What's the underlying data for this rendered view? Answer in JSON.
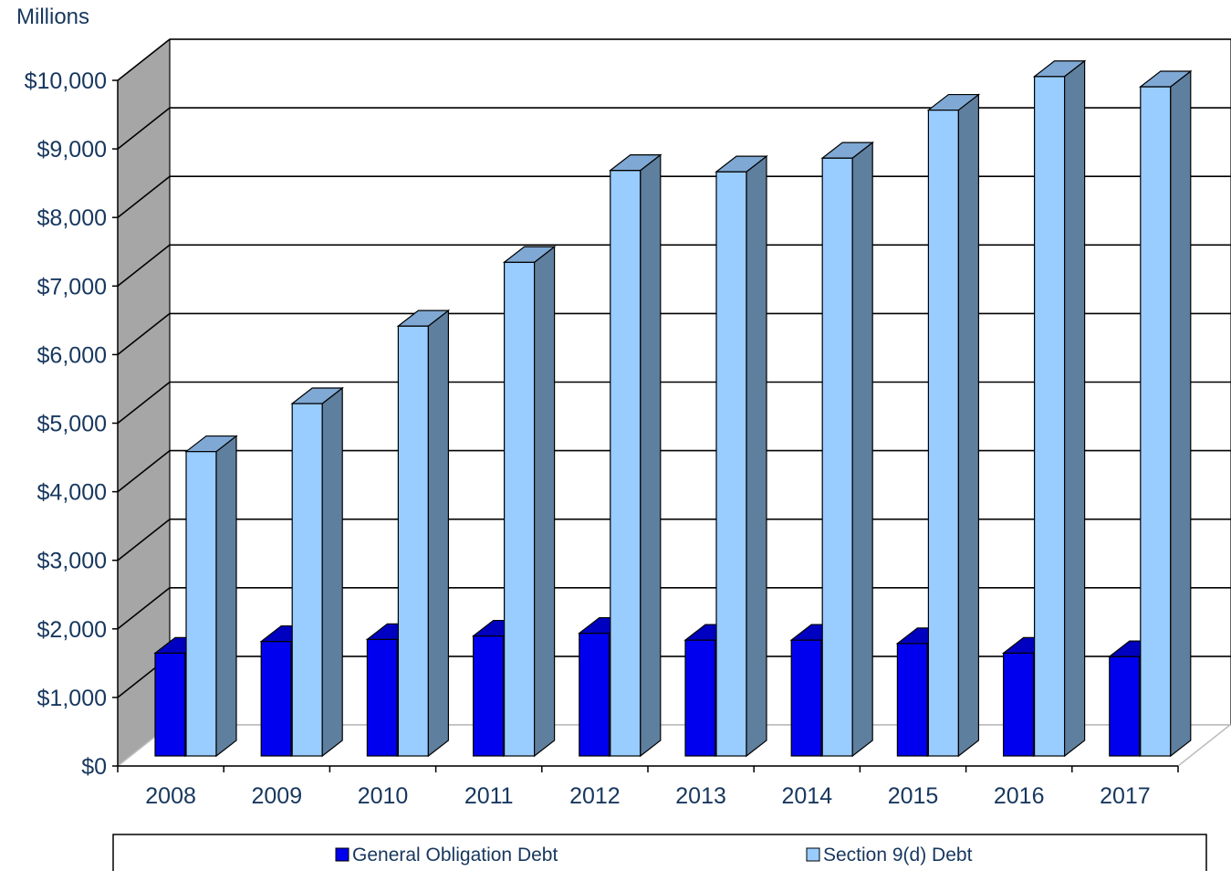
{
  "chart_data": {
    "type": "bar",
    "style": "3d-clustered-column",
    "unit_label": "Millions",
    "categories": [
      "2008",
      "2009",
      "2010",
      "2011",
      "2012",
      "2013",
      "2014",
      "2015",
      "2016",
      "2017"
    ],
    "series": [
      {
        "name": "General Obligation Debt",
        "color": "#0000ee",
        "values": [
          1500,
          1670,
          1700,
          1750,
          1790,
          1690,
          1690,
          1640,
          1500,
          1450
        ]
      },
      {
        "name": "Section 9(d) Debt",
        "color": "#99ccff",
        "values": [
          4440,
          5140,
          6270,
          7200,
          8540,
          8520,
          8720,
          9420,
          9910,
          9760
        ]
      }
    ],
    "y_ticks": [
      "$0",
      "$1,000",
      "$2,000",
      "$3,000",
      "$4,000",
      "$5,000",
      "$6,000",
      "$7,000",
      "$8,000",
      "$9,000",
      "$10,000"
    ],
    "ylim": [
      0,
      10000
    ],
    "grid": true,
    "legend_position": "bottom"
  }
}
